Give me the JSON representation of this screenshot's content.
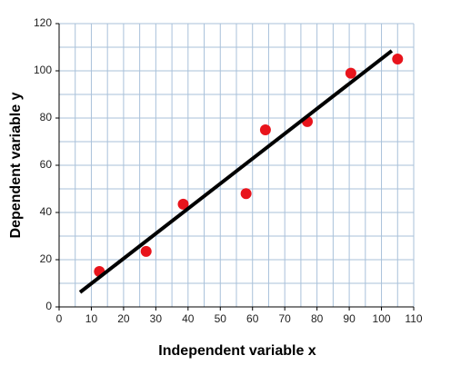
{
  "chart_data": {
    "type": "scatter",
    "xlabel": "Independent variable x",
    "ylabel": "Dependent variable y",
    "x": [
      12.5,
      27,
      38.5,
      58,
      64,
      77,
      90.5,
      105
    ],
    "values": [
      15,
      23.5,
      43.5,
      48,
      75,
      78.5,
      99,
      105
    ],
    "color": "#e8141c",
    "trendline": {
      "x": [
        6.5,
        103.2
      ],
      "values": [
        6.2,
        108.5
      ],
      "color": "#000000"
    },
    "xlim": [
      0,
      110
    ],
    "ylim": [
      0,
      120
    ],
    "xticks": [
      0,
      10,
      20,
      30,
      40,
      50,
      60,
      70,
      80,
      90,
      100,
      110
    ],
    "yticks": [
      0,
      20,
      40,
      60,
      80,
      100,
      120
    ],
    "x_minor_grid": [
      5,
      15,
      25,
      35,
      45,
      55,
      65,
      75,
      85,
      95,
      105
    ],
    "y_minor_grid": [
      10,
      30,
      50,
      70,
      90,
      110
    ],
    "grid": true,
    "grid_color": "#a9c1da"
  }
}
